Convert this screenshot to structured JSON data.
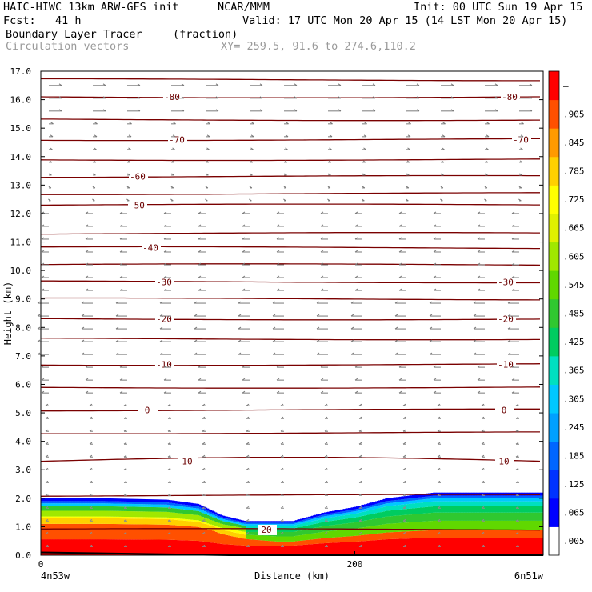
{
  "header": {
    "model": "HAIC-HIWC 13km ARW-GFS init",
    "org": "NCAR/MMM",
    "init": "Init: 00 UTC Sun 19 Apr 15",
    "fcst": "Fcst:   41 h",
    "valid": "Valid: 17 UTC Mon 20 Apr 15 (14 LST Mon 20 Apr 15)",
    "field1": "Boundary Layer Tracer",
    "field1_units": "(fraction)",
    "field2": "Circulation vectors",
    "xy": "XY= 259.5, 91.6 to 274.6,110.2"
  },
  "chart_data": {
    "type": "heatmap",
    "title": "Boundary Layer Tracer (fraction)",
    "xlabel": "Distance (km)",
    "ylabel": "Height (km)",
    "xlim": [
      0,
      320
    ],
    "ylim": [
      0,
      17
    ],
    "x_ticks": [
      0,
      200
    ],
    "y_ticks": [
      "0.0",
      "1.0",
      "2.0",
      "3.0",
      "4.0",
      "5.0",
      "6.0",
      "7.0",
      "8.0",
      "9.0",
      "10.0",
      "11.0",
      "12.0",
      "13.0",
      "14.0",
      "15.0",
      "16.0",
      "17.0"
    ],
    "x_endpoints": [
      "4n53w",
      "6n51w"
    ],
    "colorbar": {
      "labels": [
        ".005",
        ".065",
        ".125",
        ".185",
        ".245",
        ".305",
        ".365",
        ".425",
        ".485",
        ".545",
        ".605",
        ".665",
        ".725",
        ".785",
        ".845",
        ".905",
        "–"
      ],
      "colors": [
        "#ffffff",
        "#0000ff",
        "#0033ff",
        "#0066ff",
        "#00a0ff",
        "#00c8ff",
        "#00e0c0",
        "#00cc60",
        "#30c830",
        "#60d800",
        "#a0e800",
        "#e0f000",
        "#ffff00",
        "#ffd000",
        "#ff9a00",
        "#ff5000",
        "#ff0000"
      ]
    },
    "tracer_top_km": [
      [
        0,
        2.0
      ],
      [
        40,
        2.0
      ],
      [
        80,
        1.95
      ],
      [
        100,
        1.8
      ],
      [
        115,
        1.4
      ],
      [
        130,
        1.2
      ],
      [
        160,
        1.2
      ],
      [
        180,
        1.5
      ],
      [
        200,
        1.7
      ],
      [
        220,
        2.0
      ],
      [
        250,
        2.2
      ],
      [
        320,
        2.2
      ]
    ],
    "temperature_contours_C": {
      "labels": [
        "-80",
        "-70",
        "-60",
        "-50",
        "-40",
        "-30",
        "-20",
        "-10",
        "0",
        "10",
        "20"
      ],
      "levels": [
        {
          "label": "-80",
          "height_km": 16.1
        },
        {
          "label": "-70",
          "height_km": 14.6
        },
        {
          "label": "-60",
          "height_km": 13.3
        },
        {
          "label": "-50",
          "height_km": 12.3
        },
        {
          "label": "-40",
          "height_km": 10.8
        },
        {
          "label": "-30",
          "height_km": 9.6
        },
        {
          "label": "-20",
          "height_km": 8.3
        },
        {
          "label": "-10",
          "height_km": 6.7
        },
        {
          "label": "0",
          "height_km": 5.1
        },
        {
          "label": "10",
          "height_km": 3.3
        },
        {
          "label": "20",
          "height_km": 0.9
        }
      ],
      "unlabeled_heights_km": [
        16.7,
        15.3,
        13.9,
        12.7,
        11.3,
        10.2,
        9.0,
        7.6,
        5.9,
        4.3,
        2.1
      ]
    },
    "vector_wind_direction_by_height": [
      {
        "above_km": 12.0,
        "direction": "east"
      },
      {
        "above_km": 5.5,
        "direction": "west"
      },
      {
        "above_km": 0.0,
        "direction": "west-weak"
      }
    ],
    "grid": false
  }
}
